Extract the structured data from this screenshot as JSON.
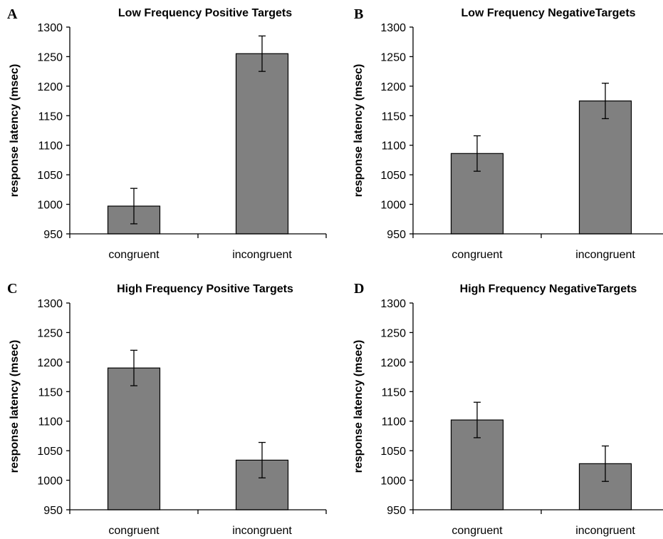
{
  "chart_data": [
    {
      "type": "bar",
      "panel": "A",
      "title": "Low Frequency Positive Targets",
      "ylabel": "response latency (msec)",
      "xlabel": "",
      "categories": [
        "congruent",
        "incongruent"
      ],
      "values": [
        997,
        1255
      ],
      "errors": [
        30,
        30
      ],
      "ylim": [
        950,
        1300
      ],
      "yticks": [
        950,
        1000,
        1050,
        1100,
        1150,
        1200,
        1250,
        1300
      ],
      "bar_color": "#808080"
    },
    {
      "type": "bar",
      "panel": "B",
      "title": "Low Frequency NegativeTargets",
      "ylabel": "response latency (msec)",
      "xlabel": "",
      "categories": [
        "congruent",
        "incongruent"
      ],
      "values": [
        1086,
        1175
      ],
      "errors": [
        30,
        30
      ],
      "ylim": [
        950,
        1300
      ],
      "yticks": [
        950,
        1000,
        1050,
        1100,
        1150,
        1200,
        1250,
        1300
      ],
      "bar_color": "#808080"
    },
    {
      "type": "bar",
      "panel": "C",
      "title": "High Frequency Positive Targets",
      "ylabel": "response latency (msec)",
      "xlabel": "",
      "categories": [
        "congruent",
        "incongruent"
      ],
      "values": [
        1190,
        1034
      ],
      "errors": [
        30,
        30
      ],
      "ylim": [
        950,
        1300
      ],
      "yticks": [
        950,
        1000,
        1050,
        1100,
        1150,
        1200,
        1250,
        1300
      ],
      "bar_color": "#808080"
    },
    {
      "type": "bar",
      "panel": "D",
      "title": "High Frequency NegativeTargets",
      "ylabel": "response latency (msec)",
      "xlabel": "",
      "categories": [
        "congruent",
        "incongruent"
      ],
      "values": [
        1102,
        1028
      ],
      "errors": [
        30,
        30
      ],
      "ylim": [
        950,
        1300
      ],
      "yticks": [
        950,
        1000,
        1050,
        1100,
        1150,
        1200,
        1250,
        1300
      ],
      "bar_color": "#808080"
    }
  ]
}
